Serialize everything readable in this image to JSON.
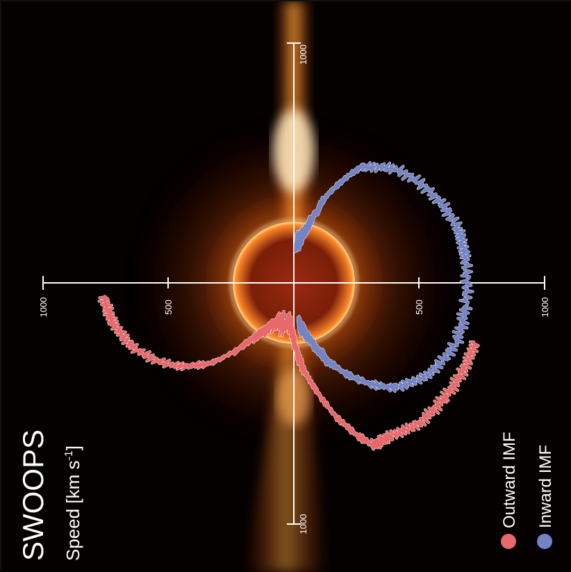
{
  "chart_data": {
    "type": "polar-line",
    "title": "SWOOPS",
    "ylabel": "Speed [km s",
    "ylabel_superscript": "-1",
    "ylabel_close": "]",
    "rlim": [
      0,
      1000
    ],
    "tick_labels": {
      "top": "1000",
      "bottom": "1000",
      "left_outer": "1000",
      "left_inner": "500",
      "right_inner": "500",
      "right_outer": "1000"
    },
    "grid": false,
    "legend_position": "bottom-left",
    "series": [
      {
        "name": "Outward IMF",
        "color": "#e8686b",
        "points": [
          {
            "angle_deg": 108,
            "speed": 760
          },
          {
            "angle_deg": 118,
            "speed": 760
          },
          {
            "angle_deg": 128,
            "speed": 755
          },
          {
            "angle_deg": 138,
            "speed": 750
          },
          {
            "angle_deg": 148,
            "speed": 720
          },
          {
            "angle_deg": 154,
            "speed": 720
          },
          {
            "angle_deg": 160,
            "speed": 610
          },
          {
            "angle_deg": 168,
            "speed": 440
          },
          {
            "angle_deg": 176,
            "speed": 300
          },
          {
            "angle_deg": 183,
            "speed": 170
          },
          {
            "angle_deg": 205,
            "speed": 170
          },
          {
            "angle_deg": 216,
            "speed": 260
          },
          {
            "angle_deg": 226,
            "speed": 460
          },
          {
            "angle_deg": 236,
            "speed": 590
          },
          {
            "angle_deg": 248,
            "speed": 690
          },
          {
            "angle_deg": 258,
            "speed": 740
          },
          {
            "angle_deg": 266,
            "speed": 760
          }
        ]
      },
      {
        "name": "Inward IMF",
        "color": "#7383c4",
        "points": [
          {
            "angle_deg": 2,
            "speed": 160
          },
          {
            "angle_deg": 10,
            "speed": 180
          },
          {
            "angle_deg": 16,
            "speed": 260
          },
          {
            "angle_deg": 22,
            "speed": 390
          },
          {
            "angle_deg": 30,
            "speed": 530
          },
          {
            "angle_deg": 42,
            "speed": 610
          },
          {
            "angle_deg": 58,
            "speed": 660
          },
          {
            "angle_deg": 72,
            "speed": 690
          },
          {
            "angle_deg": 82,
            "speed": 690
          },
          {
            "angle_deg": 98,
            "speed": 690
          },
          {
            "angle_deg": 110,
            "speed": 690
          },
          {
            "angle_deg": 124,
            "speed": 650
          },
          {
            "angle_deg": 136,
            "speed": 580
          },
          {
            "angle_deg": 146,
            "speed": 470
          },
          {
            "angle_deg": 156,
            "speed": 340
          },
          {
            "angle_deg": 166,
            "speed": 210
          },
          {
            "angle_deg": 174,
            "speed": 160
          }
        ]
      }
    ]
  }
}
